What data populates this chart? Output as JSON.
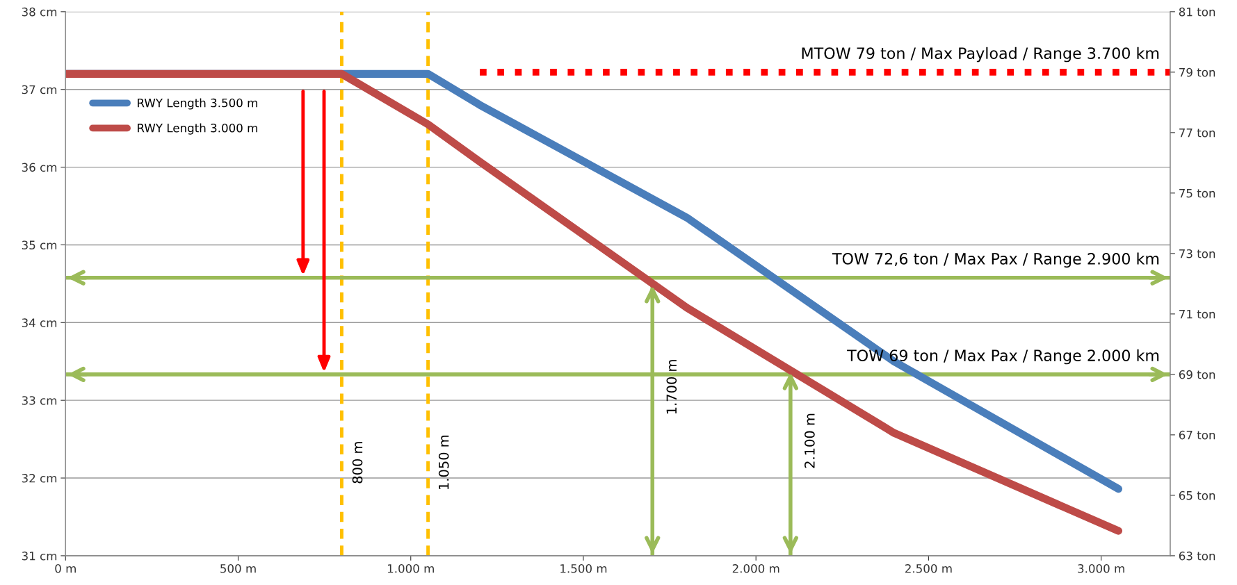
{
  "chart_data": {
    "type": "line",
    "x": [
      0,
      800,
      1050,
      1200,
      1800,
      2400,
      3050
    ],
    "series": [
      {
        "name": "RWY Length 3.500 m",
        "color": "#4a7ebb",
        "values": [
          37.2,
          37.2,
          37.2,
          36.8,
          35.35,
          33.5,
          31.86
        ]
      },
      {
        "name": "RWY Length 3.000 m",
        "color": "#be4b48",
        "values": [
          37.2,
          37.2,
          36.55,
          36.07,
          34.19,
          32.58,
          31.32
        ]
      }
    ],
    "xlim": [
      0,
      3200
    ],
    "xticks": [
      {
        "value": 0,
        "label": "0 m"
      },
      {
        "value": 500,
        "label": "500 m"
      },
      {
        "value": 1000,
        "label": "1.000 m"
      },
      {
        "value": 1500,
        "label": "1.500 m"
      },
      {
        "value": 2000,
        "label": "2.000 m"
      },
      {
        "value": 2500,
        "label": "2.500 m"
      },
      {
        "value": 3000,
        "label": "3.000 m"
      }
    ],
    "ylim": [
      31,
      38
    ],
    "yticks": [
      {
        "value": 31,
        "label": "31 cm"
      },
      {
        "value": 32,
        "label": "32 cm"
      },
      {
        "value": 33,
        "label": "33 cm"
      },
      {
        "value": 34,
        "label": "34 cm"
      },
      {
        "value": 35,
        "label": "35 cm"
      },
      {
        "value": 36,
        "label": "36 cm"
      },
      {
        "value": 37,
        "label": "37 cm"
      },
      {
        "value": 38,
        "label": "38 cm"
      }
    ],
    "y2lim": [
      63,
      81
    ],
    "y2ticks": [
      {
        "value": 63,
        "label": "63 ton"
      },
      {
        "value": 65,
        "label": "65 ton"
      },
      {
        "value": 67,
        "label": "67 ton"
      },
      {
        "value": 69,
        "label": "69 ton"
      },
      {
        "value": 71,
        "label": "71 ton"
      },
      {
        "value": 73,
        "label": "73 ton"
      },
      {
        "value": 75,
        "label": "75 ton"
      },
      {
        "value": 77,
        "label": "77 ton"
      },
      {
        "value": 79,
        "label": "79 ton"
      },
      {
        "value": 81,
        "label": "81 ton"
      }
    ],
    "ref_lines": [
      {
        "axis": "x",
        "value": 800,
        "label": "800 m",
        "color": "#ffc000",
        "line_style": "dashed"
      },
      {
        "axis": "x",
        "value": 1050,
        "label": "1.050 m",
        "color": "#ffc000",
        "line_style": "dashed"
      },
      {
        "axis": "y2",
        "value": 79,
        "label": "MTOW 79 ton / Max Payload / Range 3.700 km",
        "color": "#ff0000",
        "line_style": "dotted"
      },
      {
        "axis": "y2",
        "value": 72.2,
        "label": "TOW 72,6 ton / Max Pax / Range 2.900 km",
        "color": "#9bbb59",
        "line_style": "solid"
      },
      {
        "axis": "y2",
        "value": 69,
        "label": "TOW 69 ton / Max Pax / Range 2.000 km",
        "color": "#9bbb59",
        "line_style": "solid"
      },
      {
        "axis": "x",
        "value": 1700,
        "label": "1.700 m",
        "color": "#9bbb59",
        "line_style": "solid"
      },
      {
        "axis": "x",
        "value": 2100,
        "label": "2.100 m",
        "color": "#9bbb59",
        "line_style": "solid"
      }
    ],
    "grid": "y",
    "legend": "top left"
  }
}
